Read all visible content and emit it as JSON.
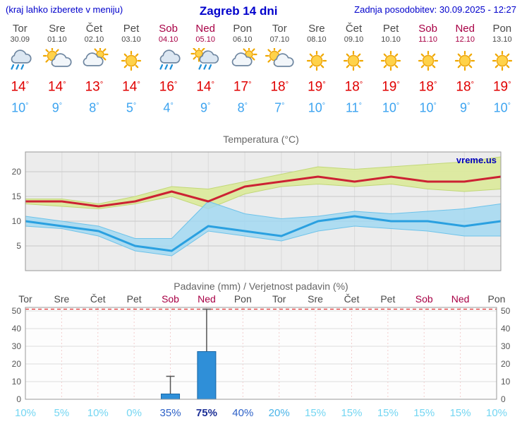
{
  "header": {
    "hint": "(kraj lahko izberete v meniju)",
    "title": "Zagreb 14 dni",
    "updated": "Zadnja posodobitev: 30.09.2025 - 12:27"
  },
  "colors": {
    "accent_blue": "#0000cc",
    "weekend": "#a80045",
    "weekday": "#4a4a4a",
    "tmax_text": "#e00000",
    "tmin_text": "#3da4f0",
    "chart_red": "#cc2233",
    "chart_blue": "#2aa0e0",
    "band_warm": "#dcea9e",
    "band_warm_edge": "#c2d878",
    "band_cool": "#9fd8f2",
    "band_cool_edge": "#6ec3ea",
    "bar_fill": "#2f8fd8",
    "bar_stroke": "#1766a6",
    "prob": {
      "low": "#74d6f2",
      "midlow": "#49b4e8",
      "mid": "#2e62c8",
      "high": "#1c2f96"
    }
  },
  "days": [
    {
      "name": "Tor",
      "date": "30.09",
      "weekend": false,
      "icon": "rain",
      "tmax": 14,
      "tmin": 10
    },
    {
      "name": "Sre",
      "date": "01.10",
      "weekend": false,
      "icon": "sun-cloud",
      "tmax": 14,
      "tmin": 9
    },
    {
      "name": "Čet",
      "date": "02.10",
      "weekend": false,
      "icon": "cloud-sun",
      "tmax": 13,
      "tmin": 8
    },
    {
      "name": "Pet",
      "date": "03.10",
      "weekend": false,
      "icon": "sun",
      "tmax": 14,
      "tmin": 5
    },
    {
      "name": "Sob",
      "date": "04.10",
      "weekend": true,
      "icon": "rain",
      "tmax": 16,
      "tmin": 4
    },
    {
      "name": "Ned",
      "date": "05.10",
      "weekend": true,
      "icon": "rain-sun",
      "tmax": 14,
      "tmin": 9
    },
    {
      "name": "Pon",
      "date": "06.10",
      "weekend": false,
      "icon": "cloud-sun",
      "tmax": 17,
      "tmin": 8
    },
    {
      "name": "Tor",
      "date": "07.10",
      "weekend": false,
      "icon": "sun-cloud",
      "tmax": 18,
      "tmin": 7
    },
    {
      "name": "Sre",
      "date": "08.10",
      "weekend": false,
      "icon": "sun",
      "tmax": 19,
      "tmin": 10
    },
    {
      "name": "Čet",
      "date": "09.10",
      "weekend": false,
      "icon": "sun",
      "tmax": 18,
      "tmin": 11
    },
    {
      "name": "Pet",
      "date": "10.10",
      "weekend": false,
      "icon": "sun",
      "tmax": 19,
      "tmin": 10
    },
    {
      "name": "Sob",
      "date": "11.10",
      "weekend": true,
      "icon": "sun",
      "tmax": 18,
      "tmin": 10
    },
    {
      "name": "Ned",
      "date": "12.10",
      "weekend": true,
      "icon": "sun",
      "tmax": 18,
      "tmin": 9
    },
    {
      "name": "Pon",
      "date": "13.10",
      "weekend": false,
      "icon": "sun",
      "tmax": 19,
      "tmin": 10
    }
  ],
  "chart_data": [
    {
      "type": "line",
      "title": "Temperatura (°C)",
      "categories": [
        "Tor 30.09",
        "Sre 01.10",
        "Čet 02.10",
        "Pet 03.10",
        "Sob 04.10",
        "Ned 05.10",
        "Pon 06.10",
        "Tor 07.10",
        "Sre 08.10",
        "Čet 09.10",
        "Pet 10.10",
        "Sob 11.10",
        "Ned 12.10",
        "Pon 13.10"
      ],
      "series": [
        {
          "name": "tmax",
          "values": [
            14,
            14,
            13,
            14,
            16,
            14,
            17,
            18,
            19,
            18,
            19,
            18,
            18,
            19
          ]
        },
        {
          "name": "tmax_hi",
          "values": [
            14.5,
            14.5,
            13.5,
            15,
            17,
            16.5,
            18,
            19.5,
            21,
            20.5,
            21,
            21.5,
            22,
            23
          ]
        },
        {
          "name": "tmax_lo",
          "values": [
            13.5,
            13,
            12.5,
            13.5,
            15,
            12.5,
            15.5,
            17,
            17.5,
            17,
            17.5,
            16.5,
            16,
            16.5
          ]
        },
        {
          "name": "tmin",
          "values": [
            10,
            9,
            8,
            5,
            4,
            9,
            8,
            7,
            10,
            11,
            10,
            10,
            9,
            10
          ]
        },
        {
          "name": "tmin_hi",
          "values": [
            11,
            10,
            9,
            6.5,
            6.5,
            14,
            11.5,
            10.5,
            11,
            12,
            11.5,
            12,
            12.5,
            13.5
          ]
        },
        {
          "name": "tmin_lo",
          "values": [
            9,
            8.5,
            7,
            4,
            3,
            8,
            7,
            6,
            8,
            9,
            8.5,
            8,
            7,
            7
          ]
        }
      ],
      "ylim": [
        0,
        24
      ],
      "yticks": [
        5,
        10,
        15,
        20
      ],
      "grid": true,
      "legend": false,
      "watermark": "vreme.us"
    },
    {
      "type": "bar",
      "title": "Padavine (mm) / Verjetnost padavin (%)",
      "categories": [
        "Tor",
        "Sre",
        "Čet",
        "Pet",
        "Sob",
        "Ned",
        "Pon",
        "Tor",
        "Sre",
        "Čet",
        "Pet",
        "Sob",
        "Ned",
        "Pon"
      ],
      "series": [
        {
          "name": "padavine_mm",
          "values": [
            0,
            0,
            0,
            0,
            3,
            27,
            0,
            0,
            0,
            0,
            0,
            0,
            0,
            0
          ]
        },
        {
          "name": "padavine_max_mm",
          "values": [
            0,
            0,
            0,
            0,
            13,
            51,
            0,
            0,
            0,
            0,
            0,
            0,
            0,
            0
          ]
        },
        {
          "name": "verjetnost_pct",
          "values": [
            10,
            5,
            10,
            0,
            35,
            75,
            40,
            20,
            15,
            15,
            15,
            15,
            15,
            10
          ]
        }
      ],
      "ylim": [
        0,
        52
      ],
      "yticks": [
        0,
        10,
        20,
        30,
        40,
        50
      ],
      "grid": true,
      "legend": false
    }
  ]
}
